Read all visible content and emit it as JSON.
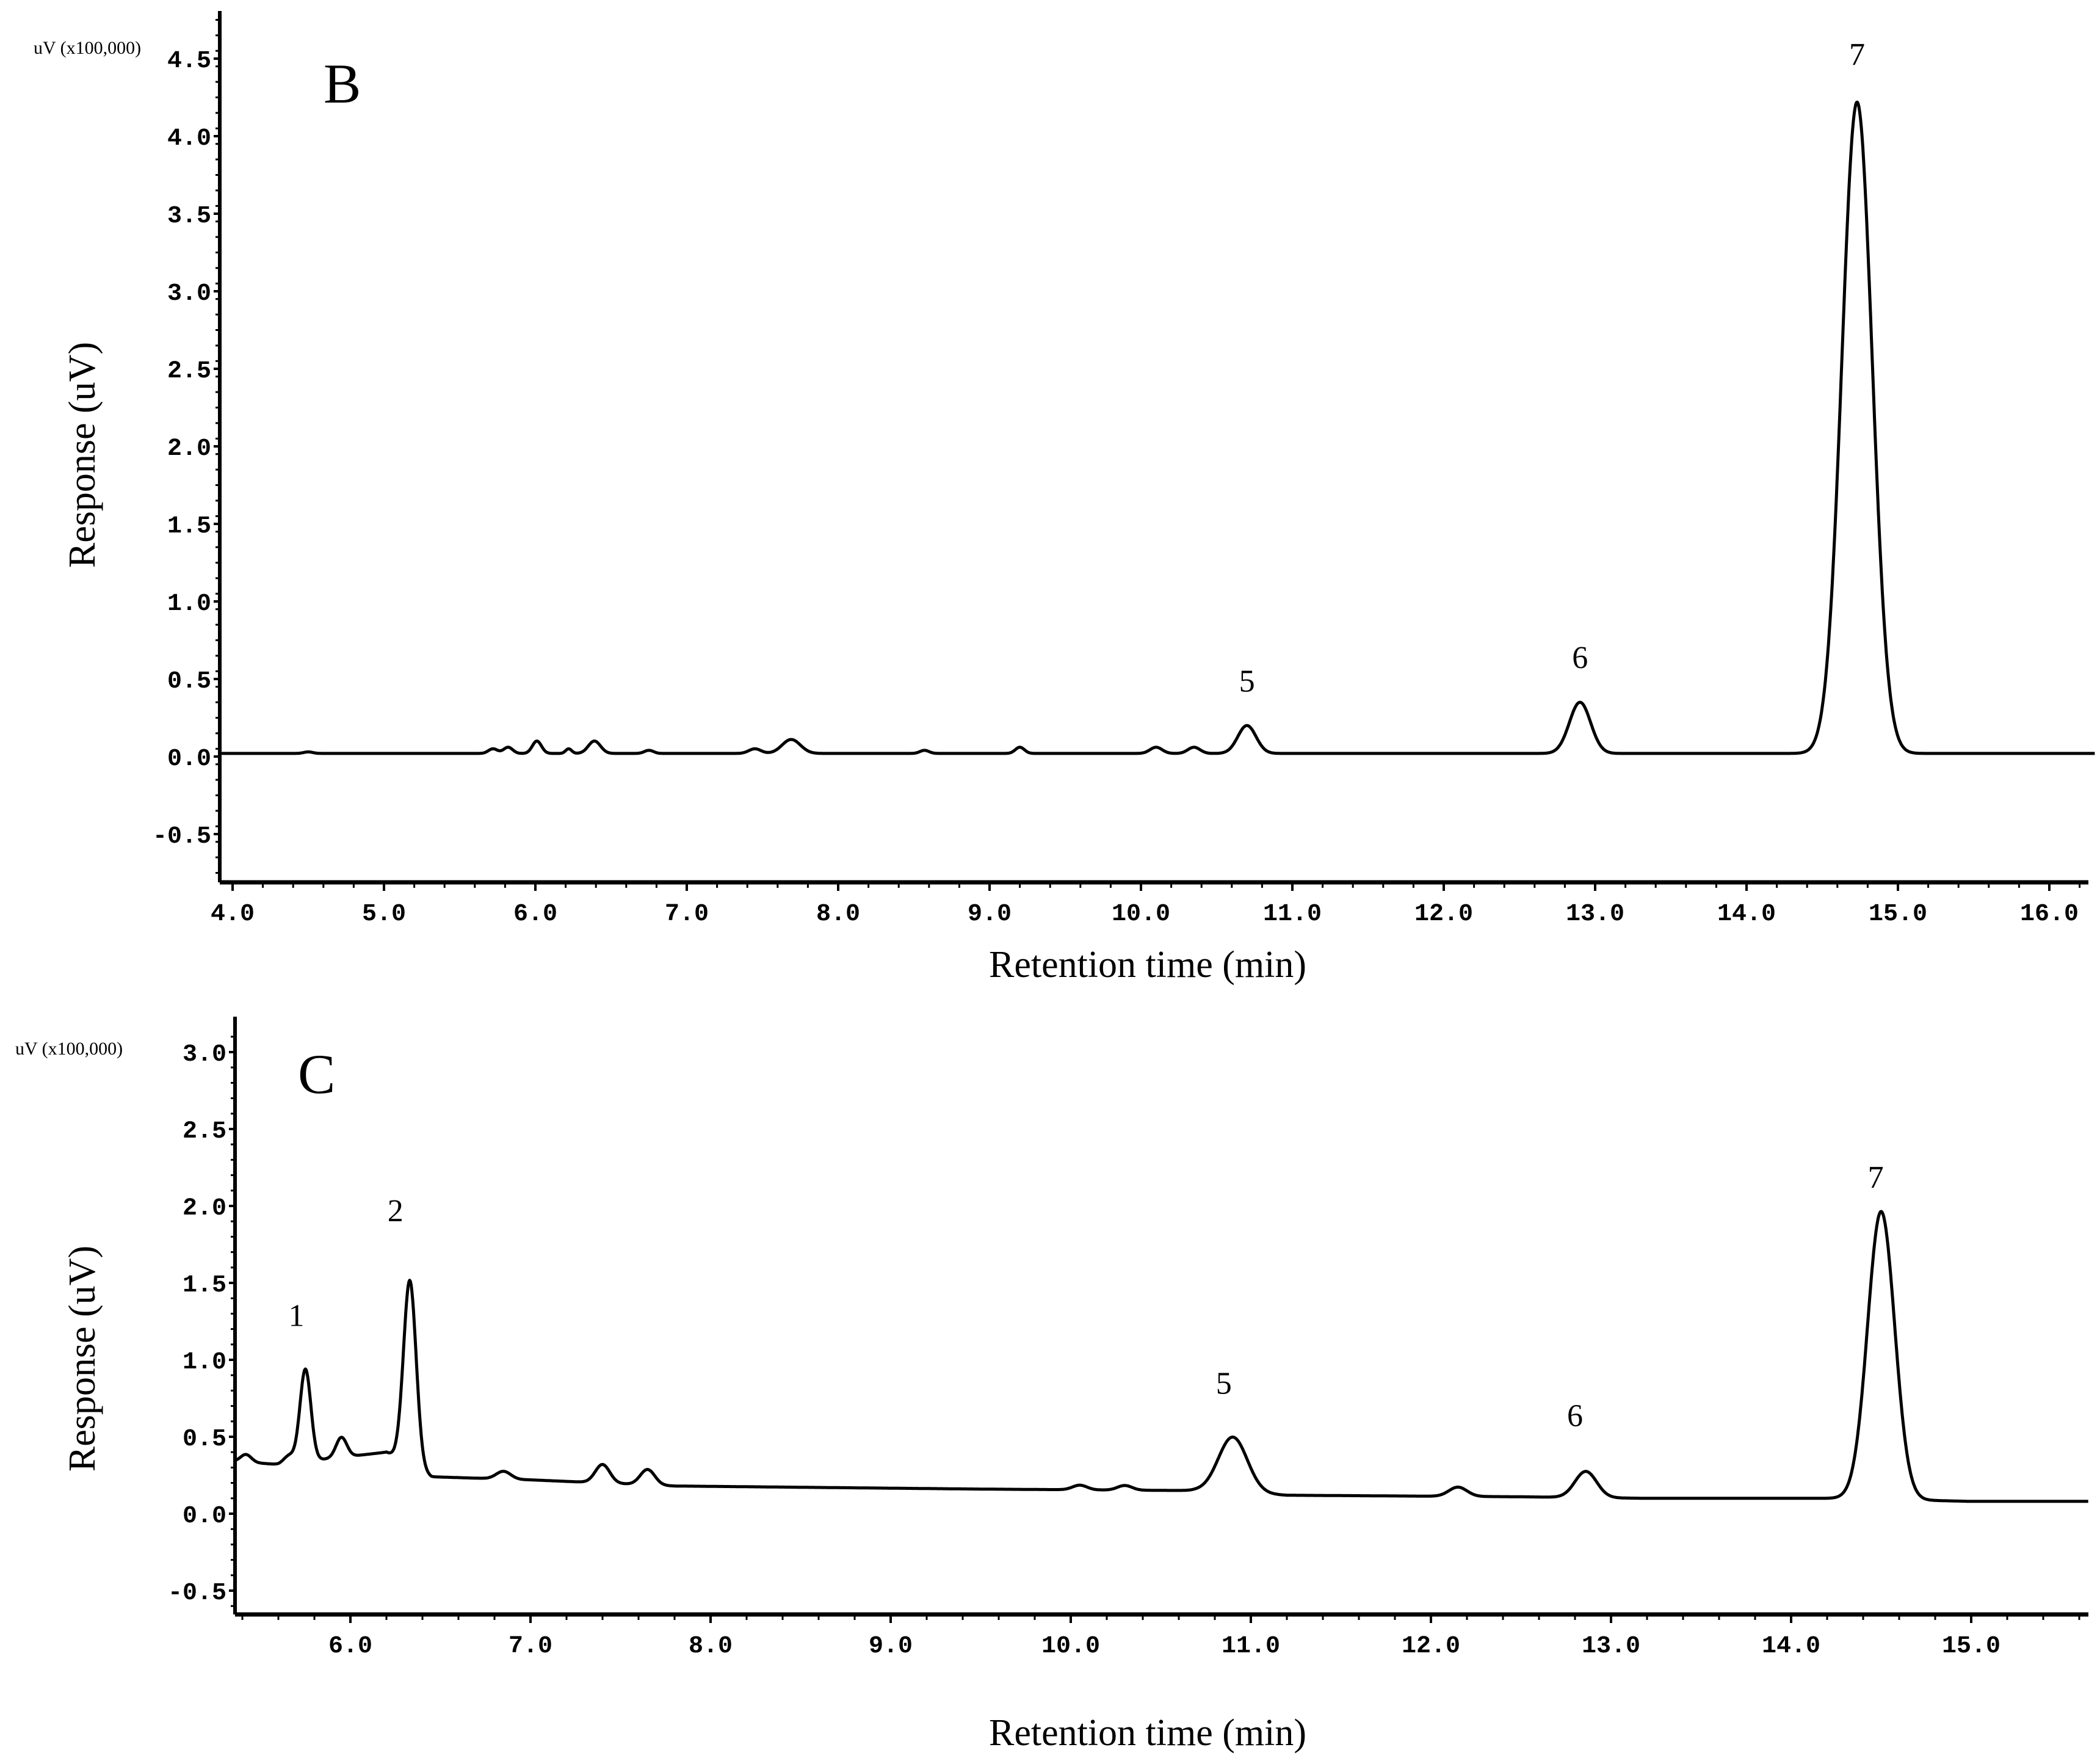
{
  "chart_data": [
    {
      "type": "line",
      "panel_label": "B",
      "unit_label": "uV (x100,000)",
      "ylabel": "Response (uV)",
      "xlabel": "Retention time (min)",
      "xlim": [
        3.92,
        16.3
      ],
      "ylim": [
        -0.85,
        4.8
      ],
      "x_ticks": [
        "4.0",
        "5.0",
        "6.0",
        "7.0",
        "8.0",
        "9.0",
        "10.0",
        "11.0",
        "12.0",
        "13.0",
        "14.0",
        "15.0",
        "16.0"
      ],
      "y_ticks": [
        "-0.5",
        "0.0",
        "0.5",
        "1.0",
        "1.5",
        "2.0",
        "2.5",
        "3.0",
        "3.5",
        "4.0",
        "4.5"
      ],
      "grid": false,
      "baseline": 0.02,
      "peaks": [
        {
          "t": 4.5,
          "h": 0.01,
          "w": 0.03
        },
        {
          "t": 5.72,
          "h": 0.03,
          "w": 0.03
        },
        {
          "t": 5.82,
          "h": 0.04,
          "w": 0.03
        },
        {
          "t": 6.01,
          "h": 0.08,
          "w": 0.03
        },
        {
          "t": 6.22,
          "h": 0.03,
          "w": 0.02
        },
        {
          "t": 6.39,
          "h": 0.08,
          "w": 0.04
        },
        {
          "t": 6.75,
          "h": 0.02,
          "w": 0.03
        },
        {
          "t": 7.45,
          "h": 0.03,
          "w": 0.04
        },
        {
          "t": 7.69,
          "h": 0.09,
          "w": 0.06
        },
        {
          "t": 8.57,
          "h": 0.02,
          "w": 0.03
        },
        {
          "t": 9.2,
          "h": 0.04,
          "w": 0.03
        },
        {
          "t": 10.1,
          "h": 0.04,
          "w": 0.04
        },
        {
          "t": 10.35,
          "h": 0.04,
          "w": 0.04
        },
        {
          "t": 10.7,
          "h": 0.18,
          "w": 0.06
        },
        {
          "t": 12.9,
          "h": 0.33,
          "w": 0.07
        },
        {
          "t": 14.73,
          "h": 4.2,
          "w": 0.1
        }
      ],
      "annotations": [
        {
          "text": "5",
          "t": 10.7,
          "y": 0.42
        },
        {
          "text": "6",
          "t": 12.9,
          "y": 0.57
        },
        {
          "text": "7",
          "t": 14.73,
          "y": 4.46
        }
      ]
    },
    {
      "type": "line",
      "panel_label": "C",
      "unit_label": "uV (x100,000)",
      "ylabel": "Response (uV)",
      "xlabel": "Retention time (min)",
      "xlim": [
        5.36,
        15.65
      ],
      "ylim": [
        -0.8,
        3.2
      ],
      "x_ticks": [
        "6.0",
        "7.0",
        "8.0",
        "9.0",
        "10.0",
        "11.0",
        "12.0",
        "13.0",
        "14.0",
        "15.0"
      ],
      "y_ticks": [
        "-0.5",
        "0.0",
        "0.5",
        "1.0",
        "1.5",
        "2.0",
        "2.5",
        "3.0"
      ],
      "grid": false,
      "baseline_points": [
        [
          5.36,
          0.34
        ],
        [
          5.6,
          0.32
        ],
        [
          6.2,
          0.4
        ],
        [
          6.45,
          0.24
        ],
        [
          7.0,
          0.22
        ],
        [
          7.8,
          0.18
        ],
        [
          9.5,
          0.16
        ],
        [
          10.7,
          0.15
        ],
        [
          11.2,
          0.12
        ],
        [
          12.5,
          0.11
        ],
        [
          13.2,
          0.1
        ],
        [
          14.3,
          0.1
        ],
        [
          15.0,
          0.08
        ],
        [
          15.65,
          0.08
        ]
      ],
      "peaks": [
        {
          "t": 5.42,
          "h": 0.05,
          "w": 0.03
        },
        {
          "t": 5.66,
          "h": 0.05,
          "w": 0.03
        },
        {
          "t": 5.75,
          "h": 0.6,
          "w": 0.03
        },
        {
          "t": 5.95,
          "h": 0.13,
          "w": 0.03
        },
        {
          "t": 6.33,
          "h": 1.2,
          "w": 0.035
        },
        {
          "t": 6.85,
          "h": 0.05,
          "w": 0.04
        },
        {
          "t": 7.4,
          "h": 0.12,
          "w": 0.04
        },
        {
          "t": 7.65,
          "h": 0.1,
          "w": 0.04
        },
        {
          "t": 10.05,
          "h": 0.03,
          "w": 0.04
        },
        {
          "t": 10.3,
          "h": 0.03,
          "w": 0.04
        },
        {
          "t": 10.9,
          "h": 0.36,
          "w": 0.08
        },
        {
          "t": 12.15,
          "h": 0.06,
          "w": 0.05
        },
        {
          "t": 12.86,
          "h": 0.17,
          "w": 0.06
        },
        {
          "t": 14.5,
          "h": 1.87,
          "w": 0.075
        }
      ],
      "annotations": [
        {
          "text": "1",
          "t": 5.7,
          "y": 1.22
        },
        {
          "text": "2",
          "t": 6.25,
          "y": 1.9
        },
        {
          "text": "5",
          "t": 10.85,
          "y": 0.78
        },
        {
          "text": "6",
          "t": 12.8,
          "y": 0.57
        },
        {
          "text": "7",
          "t": 14.47,
          "y": 2.12
        }
      ]
    }
  ],
  "panels": [
    {
      "label": "B",
      "unit": "uV (x100,000)",
      "ylabel": "Response (uV)",
      "xlabel": "Retention time (min)"
    },
    {
      "label": "C",
      "unit": "uV (x100,000)",
      "ylabel": "Response (uV)",
      "xlabel": "Retention time (min)"
    }
  ]
}
